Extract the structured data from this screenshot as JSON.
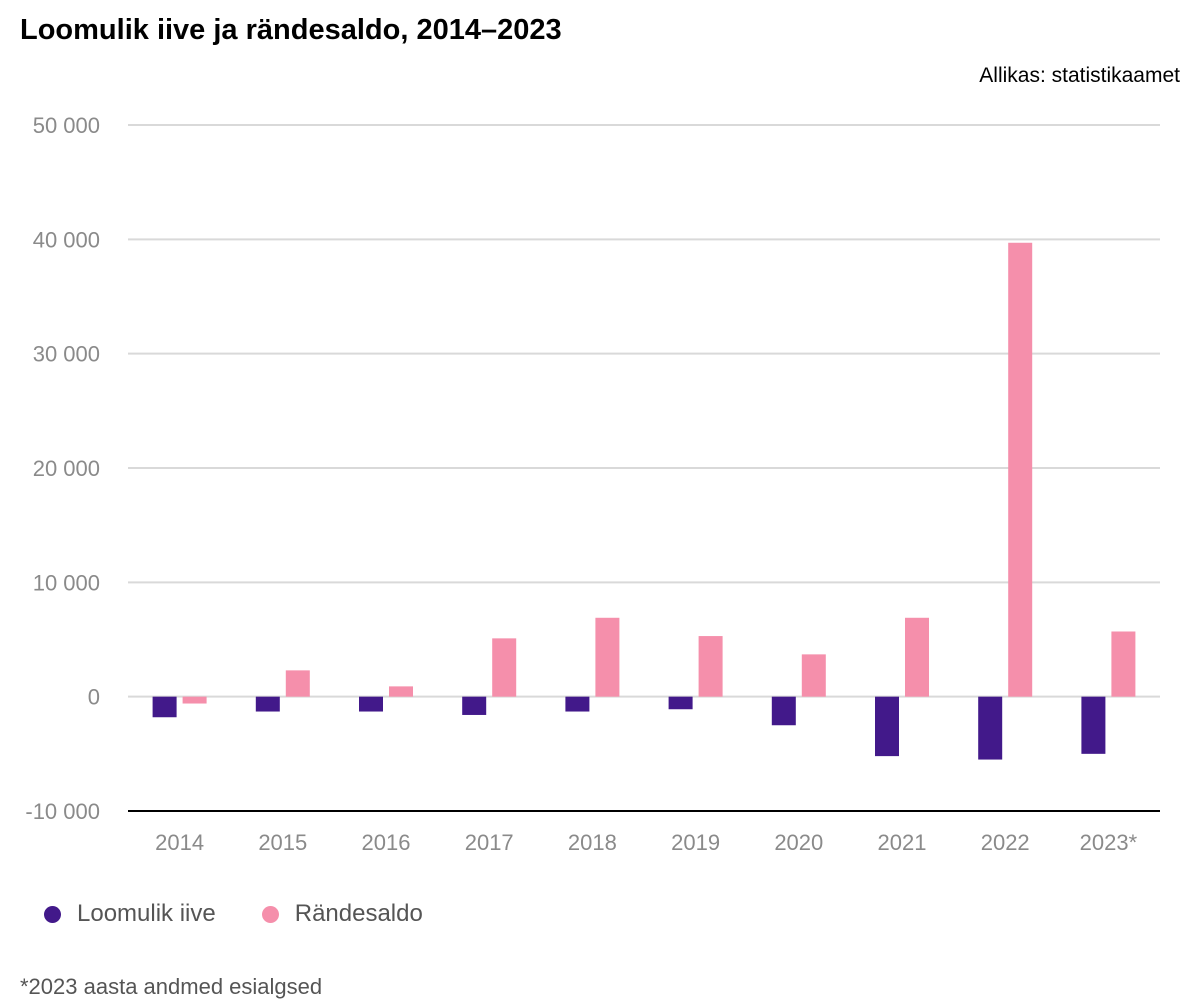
{
  "title": "Loomulik iive ja rändesaldo, 2014–2023",
  "source": "Allikas: statistikaamet",
  "footnote": "*2023 aasta andmed esialgsed",
  "chart_data": {
    "type": "bar",
    "title": "Loomulik iive ja rändesaldo, 2014–2023",
    "xlabel": "",
    "ylabel": "",
    "categories": [
      "2014",
      "2015",
      "2016",
      "2017",
      "2018",
      "2019",
      "2020",
      "2021",
      "2022",
      "2023*"
    ],
    "series": [
      {
        "name": "Loomulik iive",
        "color": "#42198a",
        "values": [
          -1800,
          -1300,
          -1300,
          -1600,
          -1300,
          -1100,
          -2500,
          -5200,
          -5500,
          -5000
        ]
      },
      {
        "name": "Rändesaldo",
        "color": "#f58fab",
        "values": [
          -600,
          2300,
          900,
          5100,
          6900,
          5300,
          3700,
          6900,
          39700,
          5700
        ]
      }
    ],
    "ylim": [
      -10000,
      50000
    ],
    "yticks": [
      -10000,
      0,
      10000,
      20000,
      30000,
      40000,
      50000
    ],
    "ytick_labels": [
      "-10 000",
      "0",
      "10 000",
      "20 000",
      "30 000",
      "40 000",
      "50 000"
    ],
    "grid": true,
    "legend": "bottom-left"
  }
}
